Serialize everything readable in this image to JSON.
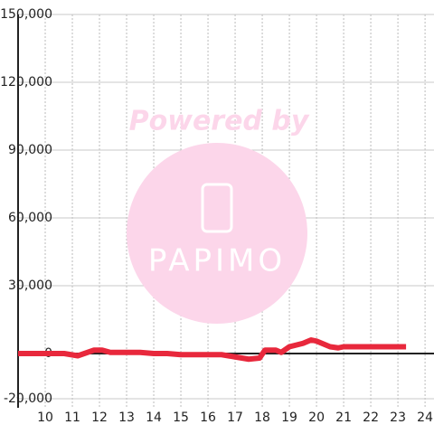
{
  "chart_data": {
    "type": "line",
    "watermark": {
      "line1": "Powered by",
      "line2": "PAPIMO"
    },
    "x": [
      9,
      10,
      10.7,
      11.2,
      11.8,
      12.1,
      12.4,
      13.5,
      14,
      14.5,
      15,
      16.5,
      17,
      17.5,
      17.9,
      18.1,
      18.5,
      18.7,
      19,
      19.5,
      19.8,
      20,
      20.5,
      20.8,
      21,
      23.3
    ],
    "series": [
      {
        "color": "#e8283c",
        "values": [
          0,
          0,
          0,
          -1000,
          1500,
          1500,
          500,
          500,
          0,
          0,
          -500,
          -500,
          -1500,
          -2500,
          -2000,
          1500,
          1500,
          500,
          3000,
          4500,
          6000,
          5500,
          3000,
          2500,
          3000,
          3000
        ]
      }
    ],
    "xlim": [
      9,
      24.33
    ],
    "xticks": [
      10,
      11,
      12,
      13,
      14,
      15,
      16,
      17,
      18,
      19,
      20,
      21,
      22,
      23,
      24
    ],
    "ylim": [
      -24000,
      150000
    ],
    "yticks": [
      {
        "value": -20000,
        "label": "-20,000"
      },
      0,
      {
        "value": 30000,
        "label": "30,000"
      },
      {
        "value": 60000,
        "label": "60,000"
      },
      {
        "value": 90000,
        "label": "90,000"
      },
      {
        "value": 120000,
        "label": "120,000"
      },
      {
        "value": 150000,
        "label": "150,000"
      }
    ],
    "grid": true
  }
}
